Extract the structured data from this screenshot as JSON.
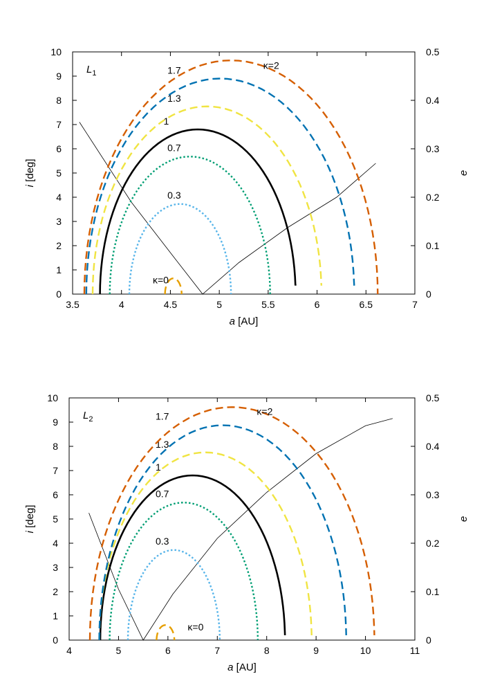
{
  "chart_data": [
    {
      "type": "line",
      "panel_label": "L",
      "panel_label_sub": "1",
      "xlabel_italic": "a",
      "xlabel_rest": " [AU]",
      "ylabel_italic": "i",
      "ylabel_rest": " [deg]",
      "y2label": "e",
      "xlim": [
        3.5,
        7
      ],
      "ylim": [
        0,
        10
      ],
      "y2lim": [
        0,
        0.5
      ],
      "x_ticks": [
        "3.5",
        "4",
        "4.5",
        "5",
        "5.5",
        "6",
        "6.5",
        "7"
      ],
      "y_ticks": [
        "0",
        "1",
        "2",
        "3",
        "4",
        "5",
        "6",
        "7",
        "8",
        "9",
        "10"
      ],
      "y2_ticks": [
        "0",
        "0.1",
        "0.2",
        "0.3",
        "0.4",
        "0.5"
      ],
      "grid": false,
      "series": [
        {
          "key": "k0",
          "name": "",
          "label": "κ=0",
          "color": "#e69f00",
          "dash": "dash",
          "c": 4.53,
          "hw": 0.085,
          "peak": 0.65,
          "end": 0.0,
          "label_at": [
            4.32,
            0.45
          ]
        },
        {
          "key": "k03",
          "name": "",
          "label": "0.3",
          "color": "#56b4e9",
          "dash": "dot",
          "c": 4.6,
          "hw": 0.52,
          "peak": 3.72,
          "end": 0.0,
          "label_at": [
            4.47,
            3.95
          ]
        },
        {
          "key": "k07",
          "name": "",
          "label": "0.7",
          "color": "#009e73",
          "dash": "dot",
          "c": 4.7,
          "hw": 0.82,
          "peak": 5.68,
          "end": 0.0,
          "label_at": [
            4.47,
            5.9
          ]
        },
        {
          "key": "k1",
          "name": "",
          "label": "1",
          "color": "#000000",
          "dash": "solid",
          "c": 4.78,
          "hw": 1.0,
          "peak": 6.8,
          "end": 0.4,
          "label_at": [
            4.43,
            7.0
          ]
        },
        {
          "key": "k13",
          "name": "",
          "label": "1.3",
          "color": "#f0e442",
          "dash": "dash",
          "c": 4.875,
          "hw": 1.17,
          "peak": 7.75,
          "end": 0.35,
          "label_at": [
            4.47,
            7.95
          ]
        },
        {
          "key": "k17",
          "name": "",
          "label": "1.7",
          "color": "#0072b2",
          "dash": "dash",
          "c": 5.01,
          "hw": 1.37,
          "peak": 8.9,
          "end": 0.35,
          "label_at": [
            4.47,
            9.1
          ]
        },
        {
          "key": "k2",
          "name": "",
          "label": "κ=2",
          "color": "#d55e00",
          "dash": "dash",
          "c": 5.12,
          "hw": 1.5,
          "peak": 9.65,
          "end": 0.0,
          "label_at": [
            5.45,
            9.3
          ]
        }
      ],
      "e_curve": {
        "color": "#000000",
        "points": [
          [
            3.57,
            7.1
          ],
          [
            4.1,
            3.8
          ],
          [
            4.55,
            1.45
          ],
          [
            4.83,
            0.0
          ],
          [
            5.2,
            1.3
          ],
          [
            5.7,
            2.75
          ],
          [
            6.2,
            4.0
          ],
          [
            6.6,
            5.4
          ]
        ]
      }
    },
    {
      "type": "line",
      "panel_label": "L",
      "panel_label_sub": "2",
      "xlabel_italic": "a",
      "xlabel_rest": " [AU]",
      "ylabel_italic": "i",
      "ylabel_rest": " [deg]",
      "y2label": "e",
      "xlim": [
        4,
        11
      ],
      "ylim": [
        0,
        10
      ],
      "y2lim": [
        0,
        0.5
      ],
      "x_ticks": [
        "4",
        "5",
        "6",
        "7",
        "8",
        "9",
        "10",
        "11"
      ],
      "y_ticks": [
        "0",
        "1",
        "2",
        "3",
        "4",
        "5",
        "6",
        "7",
        "8",
        "9",
        "10"
      ],
      "y2_ticks": [
        "0",
        "0.1",
        "0.2",
        "0.3",
        "0.4",
        "0.5"
      ],
      "grid": false,
      "series": [
        {
          "key": "k0",
          "name": "",
          "label": "κ=0",
          "color": "#e69f00",
          "dash": "dash",
          "c": 5.95,
          "hw": 0.18,
          "peak": 0.62,
          "end": 0.0,
          "label_at": [
            6.4,
            0.4
          ]
        },
        {
          "key": "k03",
          "name": "",
          "label": "0.3",
          "color": "#56b4e9",
          "dash": "dot",
          "c": 6.12,
          "hw": 0.93,
          "peak": 3.72,
          "end": 0.0,
          "label_at": [
            5.75,
            3.95
          ]
        },
        {
          "key": "k07",
          "name": "",
          "label": "0.7",
          "color": "#009e73",
          "dash": "dot",
          "c": 6.32,
          "hw": 1.5,
          "peak": 5.68,
          "end": 0.0,
          "label_at": [
            5.75,
            5.9
          ]
        },
        {
          "key": "k1",
          "name": "",
          "label": "1",
          "color": "#000000",
          "dash": "solid",
          "c": 6.5,
          "hw": 1.87,
          "peak": 6.8,
          "end": 0.2,
          "label_at": [
            5.75,
            7.0
          ]
        },
        {
          "key": "k13",
          "name": "",
          "label": "1.3",
          "color": "#f0e442",
          "dash": "dash",
          "c": 6.76,
          "hw": 2.15,
          "peak": 7.75,
          "end": 0.2,
          "label_at": [
            5.75,
            7.95
          ]
        },
        {
          "key": "k17",
          "name": "",
          "label": "1.7",
          "color": "#0072b2",
          "dash": "dash",
          "c": 7.11,
          "hw": 2.5,
          "peak": 8.87,
          "end": 0.2,
          "label_at": [
            5.75,
            9.1
          ]
        },
        {
          "key": "k2",
          "name": "",
          "label": "κ=2",
          "color": "#d55e00",
          "dash": "dash",
          "c": 7.3,
          "hw": 2.88,
          "peak": 9.62,
          "end": 0.2,
          "label_at": [
            7.8,
            9.3
          ]
        }
      ],
      "e_curve": {
        "color": "#000000",
        "points": [
          [
            4.4,
            5.25
          ],
          [
            5.0,
            2.1
          ],
          [
            5.5,
            0.0
          ],
          [
            6.1,
            1.9
          ],
          [
            7.0,
            4.2
          ],
          [
            8.0,
            6.1
          ],
          [
            9.0,
            7.7
          ],
          [
            10.0,
            8.85
          ],
          [
            10.55,
            9.15
          ]
        ]
      }
    }
  ]
}
